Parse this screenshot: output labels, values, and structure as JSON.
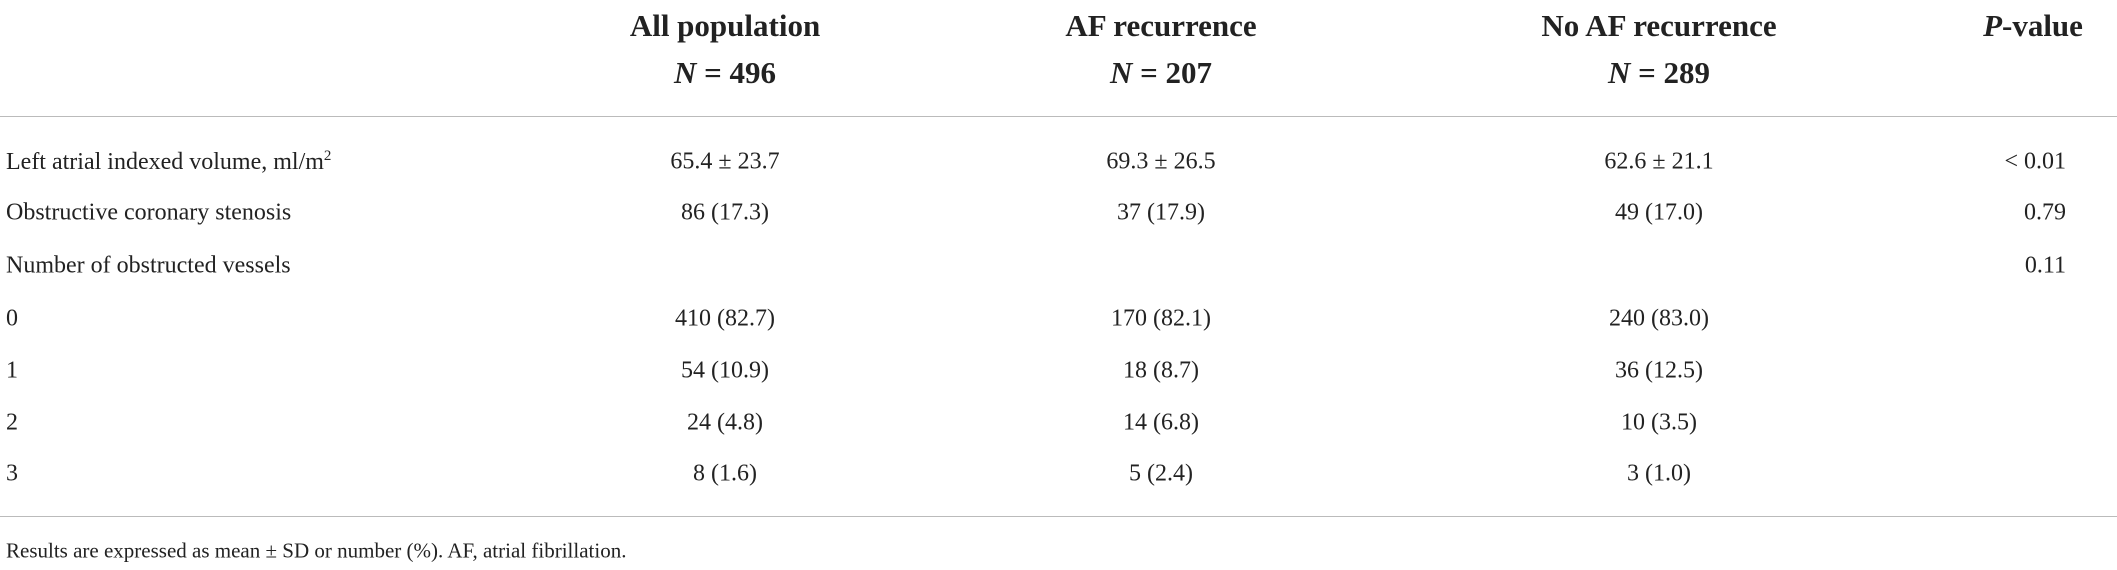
{
  "header": {
    "columns": [
      {
        "title": "All population",
        "n_symbol": "N",
        "n_value": "= 496"
      },
      {
        "title": "AF recurrence",
        "n_symbol": "N",
        "n_value": "= 207"
      },
      {
        "title": "No AF recurrence",
        "n_symbol": "N",
        "n_value": "= 289"
      }
    ],
    "p_symbol": "P",
    "p_rest": "-value"
  },
  "table": {
    "rows": [
      {
        "label": "Left atrial indexed volume, ml/m",
        "label_sup": "2",
        "cells": [
          "65.4 ± 23.7",
          "69.3 ± 26.5",
          "62.6 ± 21.1",
          "< 0.01"
        ]
      },
      {
        "label": "Obstructive coronary stenosis",
        "cells": [
          "86 (17.3)",
          "37 (17.9)",
          "49 (17.0)",
          "0.79"
        ]
      },
      {
        "label": "Number of obstructed vessels",
        "cells": [
          null,
          null,
          null,
          "0.11"
        ]
      },
      {
        "label": "0",
        "cells": [
          "410 (82.7)",
          "170 (82.1)",
          "240 (83.0)",
          null
        ]
      },
      {
        "label": "1",
        "cells": [
          "54 (10.9)",
          "18 (8.7)",
          "36 (12.5)",
          null
        ]
      },
      {
        "label": "2",
        "cells": [
          "24 (4.8)",
          "14 (6.8)",
          "10 (3.5)",
          null
        ]
      },
      {
        "label": "3",
        "cells": [
          "8 (1.6)",
          "5 (2.4)",
          "3 (1.0)",
          null
        ]
      }
    ]
  },
  "footnote": "Results are expressed as mean ± SD or number (%). AF, atrial fibrillation."
}
